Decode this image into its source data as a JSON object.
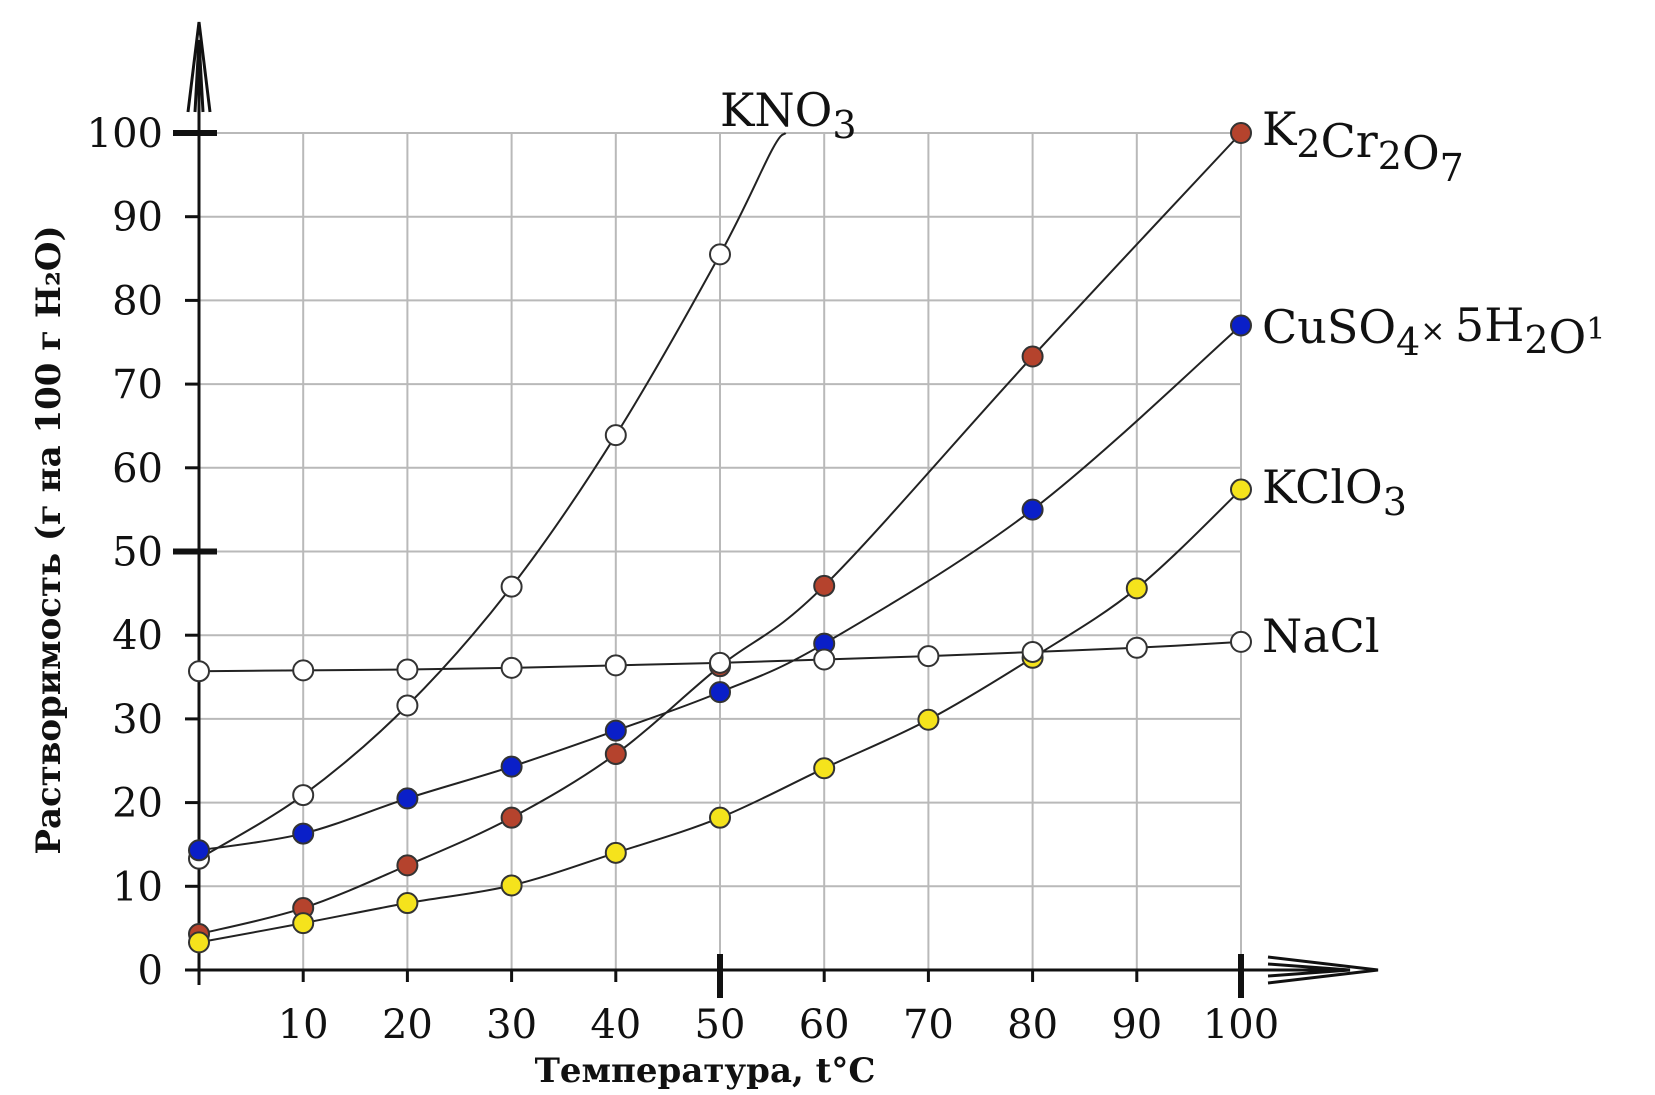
{
  "chart_data": {
    "type": "line",
    "title": "",
    "xlabel": "Температура, t°C",
    "ylabel": "Растворимость (г на 100 г H₂O)",
    "xlim": [
      0,
      100
    ],
    "ylim": [
      0,
      100
    ],
    "grid": true,
    "xticks": [
      "10",
      "20",
      "30",
      "40",
      "50",
      "60",
      "70",
      "80",
      "90",
      "100"
    ],
    "yticks": [
      "0",
      "10",
      "20",
      "30",
      "40",
      "50",
      "60",
      "70",
      "80",
      "90",
      "100"
    ],
    "series": [
      {
        "name": "KNO3",
        "label_parts": [
          [
            "KNO",
            ""
          ],
          [
            "3",
            "sub"
          ]
        ],
        "marker_color": "#ffffff",
        "points": [
          [
            0,
            13.3
          ],
          [
            10,
            20.9
          ],
          [
            20,
            31.6
          ],
          [
            30,
            45.8
          ],
          [
            40,
            63.9
          ],
          [
            50,
            85.5
          ]
        ],
        "curve_extra": [
          [
            55,
            98
          ],
          [
            56.3,
            100
          ]
        ]
      },
      {
        "name": "K2Cr2O7",
        "label_parts": [
          [
            "K",
            ""
          ],
          [
            "2",
            "sub"
          ],
          [
            "Cr",
            ""
          ],
          [
            "2",
            "sub"
          ],
          [
            "O",
            ""
          ],
          [
            "7",
            "sub"
          ]
        ],
        "marker_color": "#b5432d",
        "points": [
          [
            0,
            4.3
          ],
          [
            10,
            7.4
          ],
          [
            20,
            12.5
          ],
          [
            30,
            18.2
          ],
          [
            40,
            25.8
          ],
          [
            50,
            36.3
          ],
          [
            60,
            45.9
          ],
          [
            80,
            73.3
          ],
          [
            100,
            100
          ]
        ]
      },
      {
        "name": "CuSO4×5H2O",
        "label_parts": [
          [
            "CuSO",
            ""
          ],
          [
            "4",
            "sub"
          ],
          [
            "× ",
            "sup"
          ],
          [
            "5H",
            ""
          ],
          [
            "2",
            "sub"
          ],
          [
            "O",
            ""
          ],
          [
            "1",
            "sup"
          ]
        ],
        "marker_color": "#0a1fc8",
        "points": [
          [
            0,
            14.3
          ],
          [
            10,
            16.3
          ],
          [
            20,
            20.5
          ],
          [
            30,
            24.3
          ],
          [
            40,
            28.6
          ],
          [
            50,
            33.2
          ],
          [
            60,
            39.0
          ],
          [
            80,
            55.0
          ],
          [
            100,
            77.0
          ]
        ]
      },
      {
        "name": "KClO3",
        "label_parts": [
          [
            "KClO",
            ""
          ],
          [
            "3",
            "sub"
          ]
        ],
        "marker_color": "#f5e31c",
        "points": [
          [
            0,
            3.3
          ],
          [
            10,
            5.6
          ],
          [
            20,
            8.0
          ],
          [
            30,
            10.1
          ],
          [
            40,
            14.0
          ],
          [
            50,
            18.2
          ],
          [
            60,
            24.1
          ],
          [
            70,
            29.9
          ],
          [
            80,
            37.3
          ],
          [
            90,
            45.6
          ],
          [
            100,
            57.4
          ]
        ]
      },
      {
        "name": "NaCl",
        "label_parts": [
          [
            "NaCl",
            ""
          ]
        ],
        "marker_color": "#ffffff",
        "points": [
          [
            0,
            35.7
          ],
          [
            10,
            35.8
          ],
          [
            20,
            35.9
          ],
          [
            30,
            36.1
          ],
          [
            40,
            36.4
          ],
          [
            50,
            36.7
          ],
          [
            60,
            37.1
          ],
          [
            70,
            37.5
          ],
          [
            80,
            38.0
          ],
          [
            90,
            38.5
          ],
          [
            100,
            39.2
          ]
        ]
      }
    ]
  }
}
